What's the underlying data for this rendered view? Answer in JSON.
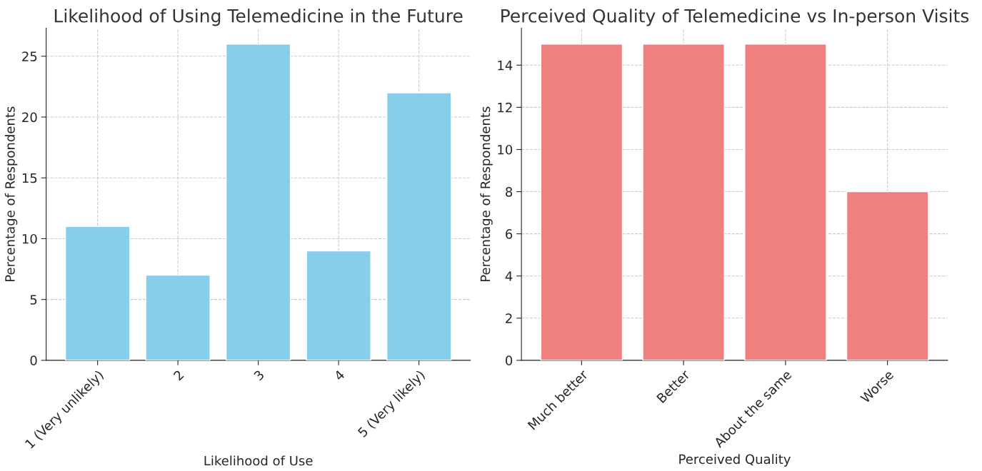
{
  "chart_data": [
    {
      "type": "bar",
      "title": "Likelihood of Using Telemedicine in the Future",
      "xlabel": "Likelihood of Use",
      "ylabel": "Percentage of Respondents",
      "categories": [
        "1 (Very unlikely)",
        "2",
        "3",
        "4",
        "5 (Very likely)"
      ],
      "values": [
        11,
        7,
        26,
        9,
        22
      ],
      "color": "#87ceeb",
      "ylim": [
        0,
        27.3
      ],
      "yticks": [
        0,
        5,
        10,
        15,
        20,
        25
      ],
      "grid": true
    },
    {
      "type": "bar",
      "title": "Perceived Quality of Telemedicine vs In-person Visits",
      "xlabel": "Perceived Quality",
      "ylabel": "Percentage of Respondents",
      "categories": [
        "Much better",
        "Better",
        "About the same",
        "Worse"
      ],
      "values": [
        15,
        15,
        15,
        8
      ],
      "color": "#f08080",
      "ylim": [
        0,
        15.75
      ],
      "yticks": [
        0,
        2,
        4,
        6,
        8,
        10,
        12,
        14
      ],
      "grid": true
    }
  ]
}
